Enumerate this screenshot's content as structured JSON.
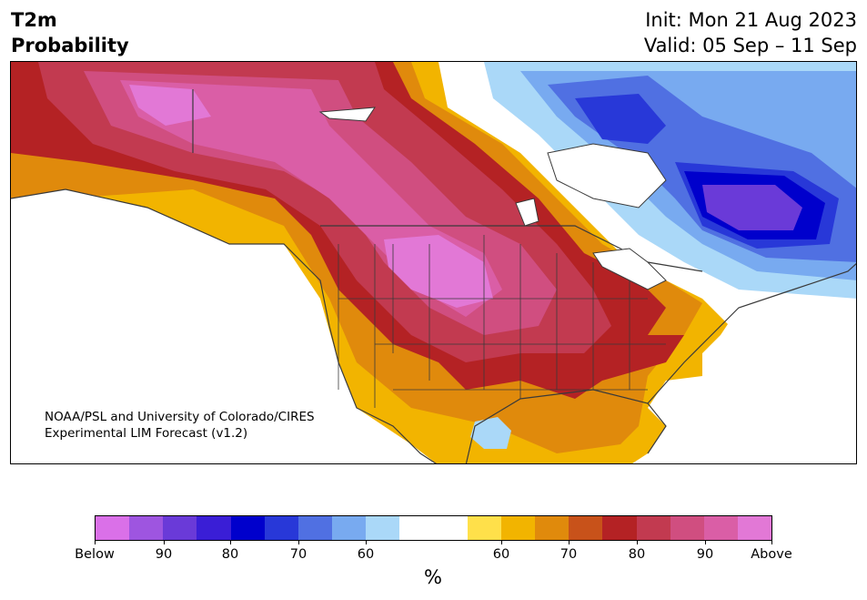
{
  "header": {
    "title_line1": "T2m",
    "title_line2": "Probability",
    "init": "Init: Mon 21 Aug 2023",
    "valid": "Valid: 05 Sep – 11 Sep"
  },
  "map": {
    "credit_line1": "NOAA/PSL and University of Colorado/CIRES",
    "credit_line2": "Experimental LIM Forecast (v1.2)"
  },
  "colorbar": {
    "unit": "%",
    "colors": [
      "#da70e8",
      "#9e55e0",
      "#6a3ad8",
      "#3a1ed6",
      "#0000cc",
      "#2838d8",
      "#5070e2",
      "#78aaf0",
      "#aad8f8",
      "#ffffff",
      "#ffffff",
      "#ffe04a",
      "#f2b400",
      "#e08a0c",
      "#c8521a",
      "#b42224",
      "#c23a50",
      "#d04e80",
      "#da5ea6",
      "#e278d6"
    ],
    "tick_labels": [
      "Below",
      "90",
      "80",
      "70",
      "60",
      "60",
      "70",
      "80",
      "90",
      "Above"
    ]
  }
}
